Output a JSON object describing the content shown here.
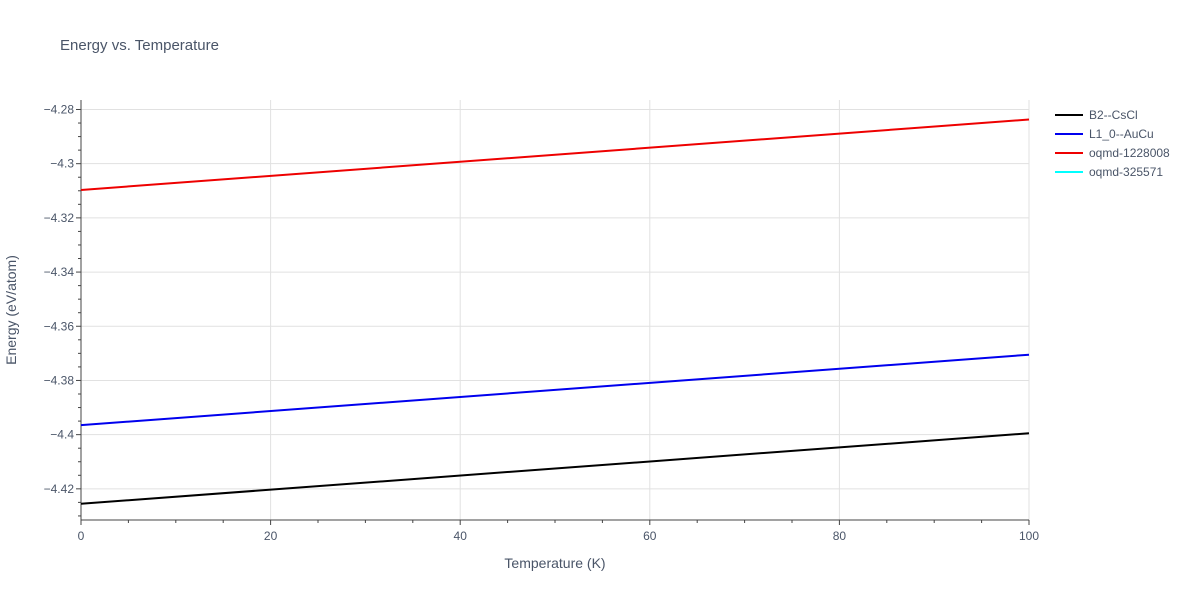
{
  "chart_data": {
    "type": "line",
    "title": "Energy vs. Temperature",
    "xlabel": "Temperature (K)",
    "ylabel": "Energy (eV/atom)",
    "xlim": [
      0,
      100
    ],
    "ylim": [
      -4.4315,
      -4.2765
    ],
    "x_ticks": [
      0,
      20,
      40,
      60,
      80,
      100
    ],
    "y_ticks": [
      -4.42,
      -4.4,
      -4.38,
      -4.36,
      -4.34,
      -4.32,
      -4.3,
      -4.28
    ],
    "x_tick_labels": [
      "0",
      "20",
      "40",
      "60",
      "80",
      "100"
    ],
    "y_tick_labels": [
      "−4.42",
      "−4.4",
      "−4.38",
      "−4.36",
      "−4.34",
      "−4.32",
      "−4.3",
      "−4.28"
    ],
    "grid": true,
    "legend_position": "top-right outside",
    "series": [
      {
        "name": "B2--CsCl",
        "color": "#000000",
        "x": [
          0,
          100
        ],
        "y": [
          -4.4255,
          -4.3995
        ]
      },
      {
        "name": "L1_0--AuCu",
        "color": "#0000ee",
        "x": [
          0,
          100
        ],
        "y": [
          -4.3965,
          -4.3705
        ]
      },
      {
        "name": "oqmd-1228008",
        "color": "#ee0000",
        "x": [
          0,
          100
        ],
        "y": [
          -4.3097,
          -4.2837
        ]
      },
      {
        "name": "oqmd-325571",
        "color": "#00ffff",
        "x": [],
        "y": []
      }
    ]
  }
}
